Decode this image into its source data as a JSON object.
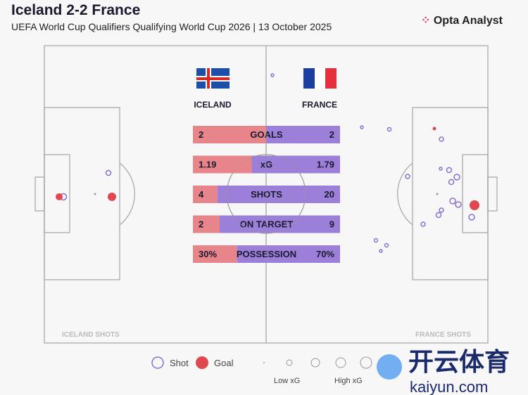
{
  "title": "Iceland 2-2 France",
  "subtitle": "UEFA World Cup Qualifiers Qualifying World Cup 2026 | 13 October 2025",
  "brand": "Opta Analyst",
  "teams": {
    "home": "ICELAND",
    "away": "FRANCE"
  },
  "colors": {
    "home": "#e8858a",
    "away": "#9b7fd9",
    "goal": "#e0474f",
    "shot": "#8a6fd0"
  },
  "chart_data": {
    "type": "table",
    "stats": [
      {
        "label": "GOALS",
        "home": 2,
        "away": 2,
        "home_text": "2",
        "away_text": "2"
      },
      {
        "label": "xG",
        "home": 1.19,
        "away": 1.79,
        "home_text": "1.19",
        "away_text": "1.79"
      },
      {
        "label": "SHOTS",
        "home": 4,
        "away": 20,
        "home_text": "4",
        "away_text": "20"
      },
      {
        "label": "ON TARGET",
        "home": 2,
        "away": 9,
        "home_text": "2",
        "away_text": "9"
      },
      {
        "label": "POSSESSION",
        "home": 30,
        "away": 70,
        "home_text": "30%",
        "away_text": "70%"
      }
    ]
  },
  "pitch_labels": {
    "home": "ICELAND SHOTS",
    "away": "FRANCE SHOTS"
  },
  "legend": {
    "shot": "Shot",
    "goal": "Goal",
    "low": "Low xG",
    "high": "High xG"
  },
  "watermark": {
    "cn": "开云体育",
    "url": "kaiyun.com"
  }
}
